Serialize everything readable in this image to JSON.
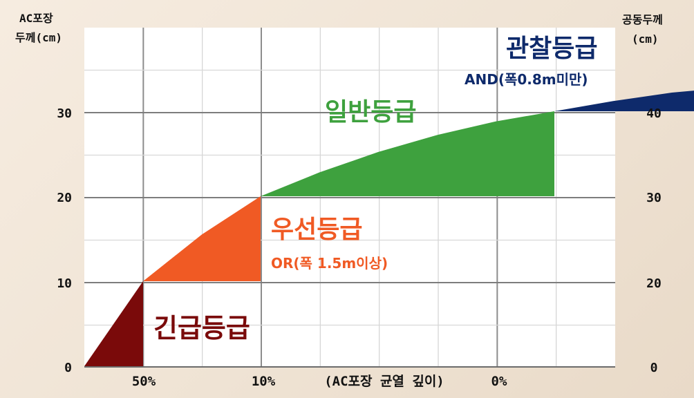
{
  "chart_data": {
    "type": "area",
    "left_axis_title": [
      "AC포장",
      "두께(cm)"
    ],
    "right_axis_title": [
      "공동두께",
      "(cm)"
    ],
    "left_ticks": [
      "0",
      "10",
      "20",
      "30"
    ],
    "right_ticks": [
      "0",
      "20",
      "30",
      "40"
    ],
    "x_labels": [
      "50%",
      "10%",
      "(AC포장 균열 깊이)",
      "0%"
    ],
    "ylim": [
      0,
      40
    ],
    "grid": true,
    "zones": [
      {
        "name": "긴급등급",
        "note": "",
        "color": "#7a0a0a",
        "top_curve": [
          [
            0,
            0
          ],
          [
            1,
            10
          ]
        ],
        "base": [
          [
            0,
            0
          ],
          [
            1,
            0
          ]
        ]
      },
      {
        "name": "우선등급",
        "note": "OR(폭 1.5m이상)",
        "color": "#f05a24",
        "top_curve": [
          [
            1,
            10
          ],
          [
            2,
            15.5
          ],
          [
            3,
            20
          ]
        ],
        "base": [
          [
            1,
            10
          ],
          [
            3,
            10
          ]
        ]
      },
      {
        "name": "일반등급",
        "note": "",
        "color": "#3ea13e",
        "top_curve": [
          [
            3,
            20
          ],
          [
            4,
            22.8
          ],
          [
            5,
            25.2
          ],
          [
            6,
            27.2
          ],
          [
            7,
            28.8
          ],
          [
            8,
            30
          ]
        ],
        "base": [
          [
            3,
            20
          ],
          [
            8,
            20
          ]
        ]
      },
      {
        "name": "관찰등급",
        "note": "AND(폭0.8m미만)",
        "color": "#0e2a6b",
        "top_curve": [
          [
            8,
            30
          ],
          [
            9,
            31.2
          ],
          [
            10,
            32.2
          ],
          [
            11,
            32.8
          ]
        ],
        "base": [
          [
            8,
            30
          ],
          [
            11,
            30
          ]
        ]
      }
    ]
  }
}
